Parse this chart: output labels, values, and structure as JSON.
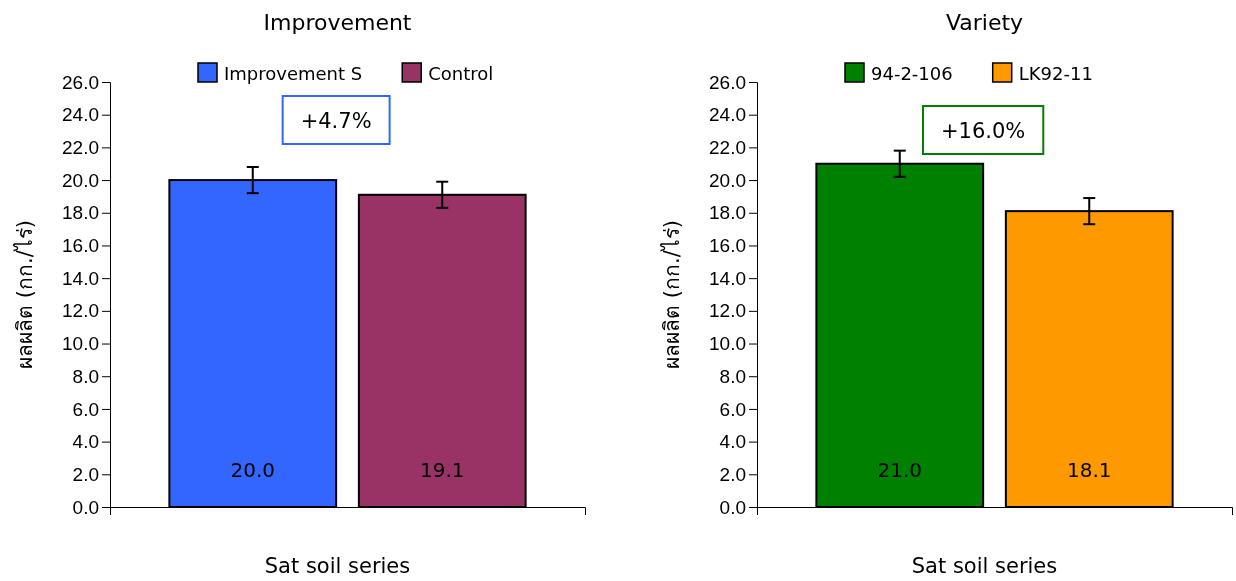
{
  "chart_data": [
    {
      "type": "bar",
      "title": "Improvement",
      "xlabel": "Sat soil series",
      "ylabel": "ผลผลิต (กก./ไร่)",
      "categories": [
        null
      ],
      "series": [
        {
          "name": "Improvement S",
          "color": "#3366ff",
          "values": [
            20.0
          ],
          "errors": [
            0.8
          ],
          "value_labels": [
            "20.0"
          ]
        },
        {
          "name": "Control",
          "color": "#993366",
          "values": [
            19.1
          ],
          "errors": [
            0.8
          ],
          "value_labels": [
            "19.1"
          ]
        }
      ],
      "ylim": [
        0,
        26
      ],
      "yticks": [
        {
          "value": 0,
          "label": "0.0"
        },
        {
          "value": 2,
          "label": "2.0"
        },
        {
          "value": 4,
          "label": "4.0"
        },
        {
          "value": 6,
          "label": "6.0"
        },
        {
          "value": 8,
          "label": "8.0"
        },
        {
          "value": 10,
          "label": "10.0"
        },
        {
          "value": 12,
          "label": "12.0"
        },
        {
          "value": 14,
          "label": "14.0"
        },
        {
          "value": 16,
          "label": "16.0"
        },
        {
          "value": 18,
          "label": "18.0"
        },
        {
          "value": 20,
          "label": "20.0"
        },
        {
          "value": 22,
          "label": "22.0"
        },
        {
          "value": 24,
          "label": "24.0"
        },
        {
          "value": 26,
          "label": "26.0"
        }
      ],
      "annotations": [
        "+4.7%"
      ],
      "legend": "top",
      "grid": false
    },
    {
      "type": "bar",
      "title": "Variety",
      "xlabel": "Sat soil series",
      "ylabel": "ผลผลิต (กก./ไร่)",
      "categories": [
        null
      ],
      "series": [
        {
          "name": "94-2-106",
          "color": "#008000",
          "values": [
            21.0
          ],
          "errors": [
            0.8
          ],
          "value_labels": [
            "21.0"
          ]
        },
        {
          "name": "LK92-11",
          "color": "#ff9900",
          "values": [
            18.1
          ],
          "errors": [
            0.8
          ],
          "value_labels": [
            "18.1"
          ]
        }
      ],
      "ylim": [
        0,
        26
      ],
      "yticks": [
        {
          "value": 0,
          "label": "0.0"
        },
        {
          "value": 2,
          "label": "2.0"
        },
        {
          "value": 4,
          "label": "4.0"
        },
        {
          "value": 6,
          "label": "6.0"
        },
        {
          "value": 8,
          "label": "8.0"
        },
        {
          "value": 10,
          "label": "10.0"
        },
        {
          "value": 12,
          "label": "12.0"
        },
        {
          "value": 14,
          "label": "14.0"
        },
        {
          "value": 16,
          "label": "16.0"
        },
        {
          "value": 18,
          "label": "18.0"
        },
        {
          "value": 20,
          "label": "20.0"
        },
        {
          "value": 22,
          "label": "22.0"
        },
        {
          "value": 24,
          "label": "24.0"
        },
        {
          "value": 26,
          "label": "26.0"
        }
      ],
      "annotations": [
        "+16.0%"
      ],
      "legend": "top",
      "grid": false
    }
  ]
}
